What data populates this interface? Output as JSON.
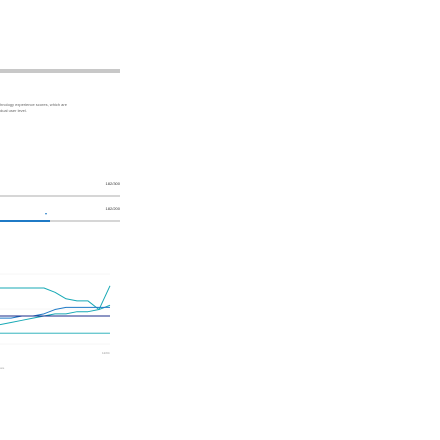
{
  "header": {
    "title": ""
  },
  "description": {
    "line1": "hnology experience scores, which are",
    "line2": "dual user level."
  },
  "scores": {
    "score1": "182/300",
    "score2": "182/200",
    "progress1": 0.0,
    "progress2": 0.42
  },
  "chart": {
    "x_left_label": "",
    "x_right_label": "12/04",
    "legend_text": "ore"
  },
  "colors": {
    "accent": "#1f7ac6",
    "teal": "#17a9b5",
    "navy": "#1a2b8a",
    "track": "#d6d6d6"
  },
  "chart_data": {
    "type": "line",
    "x": [
      0,
      1,
      2,
      3,
      4,
      5,
      6,
      7,
      8,
      9,
      10
    ],
    "series": [
      {
        "values": [
          82,
          82,
          82,
          82,
          82,
          78,
          72,
          70,
          70,
          62,
          84
        ]
      },
      {
        "values": [
          48,
          50,
          52,
          54,
          56,
          58,
          58,
          60,
          60,
          62,
          66
        ]
      },
      {
        "values": [
          54,
          54,
          56,
          56,
          58,
          62,
          64,
          64,
          64,
          64,
          64
        ]
      },
      {
        "values": [
          56,
          56,
          56,
          56,
          56,
          56,
          56,
          56,
          56,
          56,
          56
        ]
      },
      {
        "values": [
          40,
          40,
          40,
          40,
          40,
          40,
          40,
          40,
          40,
          40,
          40
        ]
      }
    ],
    "xlabel": "",
    "ylabel": "",
    "ylim": [
      30,
      95
    ],
    "grid": true
  }
}
